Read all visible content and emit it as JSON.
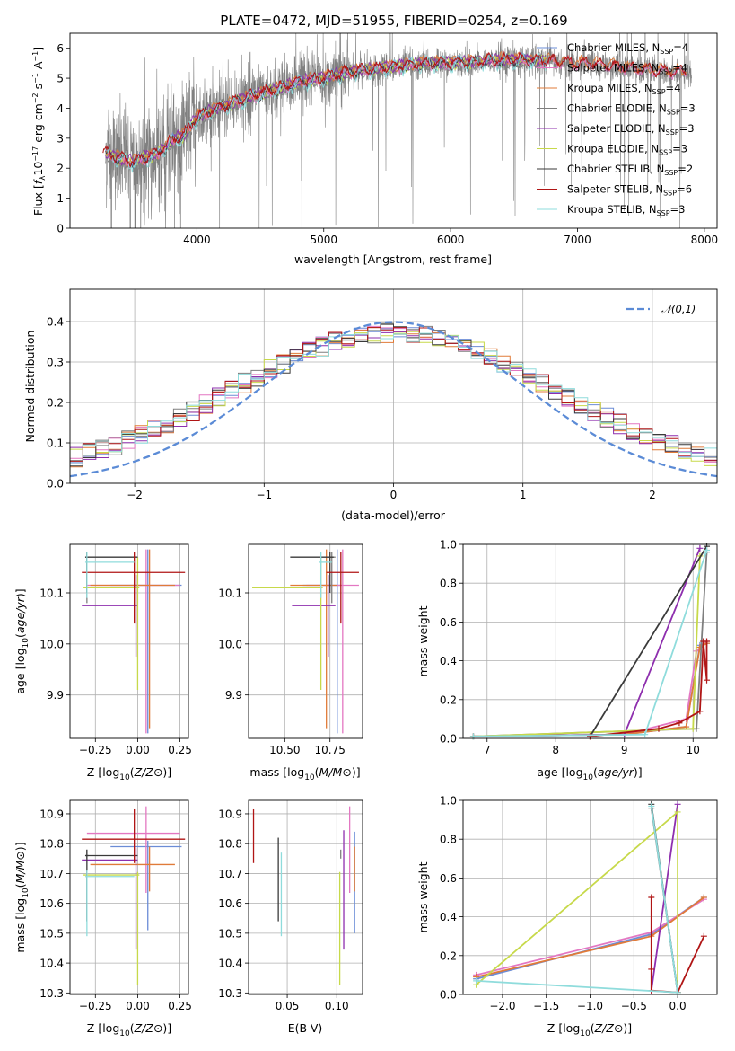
{
  "figure": {
    "title": "PLATE=0472, MJD=51955, FIBERID=0254, z=0.169"
  },
  "models": [
    {
      "imf": "Chabrier",
      "lib": "MILES",
      "n": "4",
      "color": "#6b8cd6"
    },
    {
      "imf": "Salpeter",
      "lib": "MILES",
      "n": "4",
      "color": "#e377c2"
    },
    {
      "imf": "Kroupa",
      "lib": "MILES",
      "n": "4",
      "color": "#e07b39"
    },
    {
      "imf": "Chabrier",
      "lib": "ELODIE",
      "n": "3",
      "color": "#7f7f7f"
    },
    {
      "imf": "Salpeter",
      "lib": "ELODIE",
      "n": "3",
      "color": "#8e2fae"
    },
    {
      "imf": "Kroupa",
      "lib": "ELODIE",
      "n": "3",
      "color": "#c7d94a"
    },
    {
      "imf": "Chabrier",
      "lib": "STELIB",
      "n": "2",
      "color": "#3a3a3a"
    },
    {
      "imf": "Salpeter",
      "lib": "STELIB",
      "n": "6",
      "color": "#b01515"
    },
    {
      "imf": "Kroupa",
      "lib": "STELIB",
      "n": "3",
      "color": "#8fdcdc"
    }
  ],
  "chart_data": [
    {
      "id": "spectrum",
      "type": "line",
      "xlabel": "wavelength [Angstrom, rest frame]",
      "ylabel": "Flux [f_λ 10^-17 erg cm^-2 s^-1 A^-1]",
      "xlim": [
        3000,
        8100
      ],
      "ylim": [
        0,
        6.5
      ],
      "xticks": [
        4000,
        5000,
        6000,
        7000,
        8000
      ],
      "yticks": [
        0,
        1,
        2,
        3,
        4,
        5,
        6
      ],
      "grid": false,
      "legend": "right",
      "model_continuum": {
        "x": [
          3280,
          3400,
          3500,
          3600,
          3700,
          3800,
          3900,
          4000,
          4200,
          4400,
          4600,
          4800,
          5000,
          5200,
          5400,
          5600,
          5800,
          6000,
          6200,
          6400,
          6600,
          6800,
          7000,
          7200,
          7400,
          7600,
          7800
        ],
        "y": [
          2.5,
          2.3,
          2.2,
          2.35,
          2.5,
          2.9,
          3.1,
          3.7,
          4.05,
          4.35,
          4.6,
          4.85,
          5.0,
          5.2,
          5.3,
          5.4,
          5.5,
          5.5,
          5.55,
          5.6,
          5.6,
          5.55,
          5.5,
          5.45,
          5.35,
          5.25,
          5.2
        ]
      }
    },
    {
      "id": "residuals",
      "type": "histogram",
      "xlabel": "(data-model)/error",
      "ylabel": "Normed distribution",
      "xlim": [
        -2.5,
        2.5
      ],
      "ylim": [
        0,
        0.48
      ],
      "xticks": [
        -2,
        -1,
        0,
        1,
        2
      ],
      "yticks": [
        0.0,
        0.1,
        0.2,
        0.3,
        0.4
      ],
      "grid": true,
      "legend": "top-right",
      "normal_label": "𝒩(0,1)",
      "normal_color": "#5b8bd6"
    },
    {
      "id": "age_vs_Z",
      "type": "errorbar",
      "xlabel": "Z [log10(Z/Z⊙)]",
      "ylabel": "age [log10(age/yr)]",
      "xlim": [
        -0.4,
        0.3
      ],
      "ylim": [
        9.815,
        10.195
      ],
      "xticks": [
        -0.25,
        0.0,
        0.25
      ],
      "yticks": [
        9.9,
        10.0,
        10.1
      ],
      "grid": true,
      "points": [
        {
          "x": 0.06,
          "xerr": [
            0.22,
            0.2
          ],
          "y": 10.115,
          "yerr": [
            0.29,
            0.07
          ]
        },
        {
          "x": 0.05,
          "xerr": [
            0.35,
            0.2
          ],
          "y": 10.115,
          "yerr": [
            0.29,
            0.07
          ]
        },
        {
          "x": 0.07,
          "xerr": [
            0.35,
            0.15
          ],
          "y": 10.115,
          "yerr": [
            0.28,
            0.07
          ]
        },
        {
          "x": -0.3,
          "xerr": [
            0.01,
            0.01
          ],
          "y": 10.17,
          "yerr": [
            0.09,
            0.01
          ]
        },
        {
          "x": -0.01,
          "xerr": [
            0.32,
            0.01
          ],
          "y": 10.075,
          "yerr": [
            0.1,
            0.06
          ]
        },
        {
          "x": 0.0,
          "xerr": [
            0.32,
            0.01
          ],
          "y": 10.11,
          "yerr": [
            0.2,
            0.06
          ]
        },
        {
          "x": -0.3,
          "xerr": [
            0.01,
            0.3
          ],
          "y": 10.17,
          "yerr": [
            0.07,
            0.01
          ]
        },
        {
          "x": -0.02,
          "xerr": [
            0.31,
            0.3
          ],
          "y": 10.14,
          "yerr": [
            0.1,
            0.04
          ]
        },
        {
          "x": -0.3,
          "xerr": [
            0.01,
            0.28
          ],
          "y": 10.16,
          "yerr": [
            0.07,
            0.02
          ]
        }
      ]
    },
    {
      "id": "age_vs_mass",
      "type": "errorbar",
      "xlabel": "mass [log10(M/M⊙)]",
      "ylabel": "",
      "xlim": [
        10.3,
        10.93
      ],
      "ylim": [
        9.815,
        10.195
      ],
      "xticks": [
        10.5,
        10.75
      ],
      "yticks": [
        9.9,
        10.0,
        10.1
      ],
      "grid": true,
      "points": [
        {
          "x": 10.79,
          "xerr": [
            0.19,
            0.02
          ],
          "y": 10.115,
          "yerr": [
            0.29,
            0.07
          ]
        },
        {
          "x": 10.82,
          "xerr": [
            0.2,
            0.09
          ],
          "y": 10.115,
          "yerr": [
            0.29,
            0.07
          ]
        },
        {
          "x": 10.73,
          "xerr": [
            0.2,
            0.06
          ],
          "y": 10.115,
          "yerr": [
            0.28,
            0.07
          ]
        },
        {
          "x": 10.76,
          "xerr": [
            0.02,
            0.02
          ],
          "y": 10.17,
          "yerr": [
            0.09,
            0.01
          ]
        },
        {
          "x": 10.74,
          "xerr": [
            0.2,
            0.04
          ],
          "y": 10.075,
          "yerr": [
            0.1,
            0.06
          ]
        },
        {
          "x": 10.7,
          "xerr": [
            0.38,
            0.01
          ],
          "y": 10.11,
          "yerr": [
            0.2,
            0.06
          ]
        },
        {
          "x": 10.75,
          "xerr": [
            0.22,
            0.02
          ],
          "y": 10.17,
          "yerr": [
            0.07,
            0.01
          ]
        },
        {
          "x": 10.81,
          "xerr": [
            0.08,
            0.1
          ],
          "y": 10.14,
          "yerr": [
            0.1,
            0.04
          ]
        },
        {
          "x": 10.7,
          "xerr": [
            0.01,
            0.06
          ],
          "y": 10.16,
          "yerr": [
            0.07,
            0.02
          ]
        }
      ]
    },
    {
      "id": "weight_vs_age",
      "type": "line",
      "xlabel": "age [log10(age/yr)]",
      "ylabel": "mass weight",
      "xlim": [
        6.65,
        10.35
      ],
      "ylim": [
        0,
        1.0
      ],
      "xticks": [
        7,
        8,
        9,
        10
      ],
      "yticks": [
        0.0,
        0.2,
        0.4,
        0.6,
        0.8,
        1.0
      ],
      "grid": true,
      "series": [
        {
          "x": [
            6.8,
            9.0,
            9.9,
            10.1,
            10.2
          ],
          "y": [
            0.01,
            0.02,
            0.06,
            0.48,
            0.49
          ]
        },
        {
          "x": [
            6.8,
            9.0,
            9.9,
            10.05,
            10.2
          ],
          "y": [
            0.01,
            0.02,
            0.1,
            0.45,
            0.5
          ]
        },
        {
          "x": [
            6.8,
            9.0,
            9.9,
            10.1,
            10.2
          ],
          "y": [
            0.01,
            0.02,
            0.06,
            0.47,
            0.49
          ]
        },
        {
          "x": [
            6.8,
            10.05,
            10.2
          ],
          "y": [
            0.01,
            0.05,
            0.96
          ]
        },
        {
          "x": [
            6.8,
            9.0,
            10.1
          ],
          "y": [
            0.01,
            0.02,
            0.98
          ]
        },
        {
          "x": [
            6.8,
            10.0,
            10.1
          ],
          "y": [
            0.01,
            0.05,
            0.94
          ]
        },
        {
          "x": [
            8.5,
            10.2
          ],
          "y": [
            0.01,
            0.99
          ]
        },
        {
          "x": [
            8.5,
            9.5,
            9.8,
            10.1,
            10.15,
            10.2,
            10.2
          ],
          "y": [
            0.01,
            0.05,
            0.08,
            0.14,
            0.5,
            0.3,
            0.5
          ]
        },
        {
          "x": [
            6.8,
            9.3,
            10.2
          ],
          "y": [
            0.01,
            0.02,
            0.97
          ]
        }
      ]
    },
    {
      "id": "mass_vs_Z",
      "type": "errorbar",
      "xlabel": "Z [log10(Z/Z⊙)]",
      "ylabel": "mass [log10(M/M⊙)]",
      "xlim": [
        -0.4,
        0.3
      ],
      "ylim": [
        10.295,
        10.945
      ],
      "xticks": [
        -0.25,
        0.0,
        0.25
      ],
      "yticks": [
        10.3,
        10.4,
        10.5,
        10.6,
        10.7,
        10.8,
        10.9
      ],
      "grid": true,
      "points": [
        {
          "x": 0.06,
          "xerr": [
            0.22,
            0.2
          ],
          "y": 10.79,
          "yerr": [
            0.28,
            0.02
          ]
        },
        {
          "x": 0.05,
          "xerr": [
            0.35,
            0.2
          ],
          "y": 10.835,
          "yerr": [
            0.2,
            0.09
          ]
        },
        {
          "x": 0.07,
          "xerr": [
            0.35,
            0.15
          ],
          "y": 10.73,
          "yerr": [
            0.09,
            0.06
          ]
        },
        {
          "x": -0.3,
          "xerr": [
            0.01,
            0.01
          ],
          "y": 10.76,
          "yerr": [
            0.01,
            0.02
          ]
        },
        {
          "x": -0.01,
          "xerr": [
            0.32,
            0.01
          ],
          "y": 10.745,
          "yerr": [
            0.3,
            0.04
          ]
        },
        {
          "x": 0.0,
          "xerr": [
            0.32,
            0.01
          ],
          "y": 10.695,
          "yerr": [
            0.37,
            0.01
          ]
        },
        {
          "x": -0.3,
          "xerr": [
            0.01,
            0.3
          ],
          "y": 10.76,
          "yerr": [
            0.22,
            0.02
          ]
        },
        {
          "x": -0.02,
          "xerr": [
            0.31,
            0.3
          ],
          "y": 10.815,
          "yerr": [
            0.08,
            0.1
          ]
        },
        {
          "x": -0.3,
          "xerr": [
            0.01,
            0.28
          ],
          "y": 10.69,
          "yerr": [
            0.2,
            0.02
          ]
        }
      ]
    },
    {
      "id": "mass_vs_ebv",
      "type": "errorbar",
      "xlabel": "E(B-V)",
      "ylabel": "",
      "xlim": [
        0.011,
        0.126
      ],
      "ylim": [
        10.295,
        10.945
      ],
      "xticks": [
        0.05,
        0.1
      ],
      "yticks": [
        10.3,
        10.4,
        10.5,
        10.6,
        10.7,
        10.8,
        10.9
      ],
      "grid": true,
      "points": [
        {
          "x": 0.118,
          "y": 10.75,
          "yerr": [
            0.25,
            0.09
          ]
        },
        {
          "x": 0.113,
          "y": 10.835,
          "yerr": [
            0.2,
            0.09
          ]
        },
        {
          "x": 0.118,
          "y": 10.73,
          "yerr": [
            0.09,
            0.06
          ]
        },
        {
          "x": 0.104,
          "y": 10.76,
          "yerr": [
            0.01,
            0.02
          ]
        },
        {
          "x": 0.107,
          "y": 10.745,
          "yerr": [
            0.3,
            0.1
          ]
        },
        {
          "x": 0.103,
          "y": 10.695,
          "yerr": [
            0.37,
            0.01
          ]
        },
        {
          "x": 0.041,
          "y": 10.76,
          "yerr": [
            0.22,
            0.06
          ]
        },
        {
          "x": 0.016,
          "y": 10.815,
          "yerr": [
            0.08,
            0.1
          ]
        },
        {
          "x": 0.044,
          "y": 10.69,
          "yerr": [
            0.2,
            0.08
          ]
        }
      ]
    },
    {
      "id": "weight_vs_Z",
      "type": "line",
      "xlabel": "Z [log10(Z/Z⊙)]",
      "ylabel": "mass weight",
      "xlim": [
        -2.45,
        0.45
      ],
      "ylim": [
        0,
        1.0
      ],
      "xticks": [
        -2.0,
        -1.5,
        -1.0,
        -0.5,
        0.0
      ],
      "yticks": [
        0.0,
        0.2,
        0.4,
        0.6,
        0.8,
        1.0
      ],
      "grid": true,
      "series": [
        {
          "x": [
            -2.3,
            -0.3,
            0.3
          ],
          "y": [
            0.08,
            0.31,
            0.5
          ]
        },
        {
          "x": [
            -2.3,
            -0.3,
            0.3
          ],
          "y": [
            0.1,
            0.32,
            0.49
          ]
        },
        {
          "x": [
            -2.3,
            -0.3,
            0.3
          ],
          "y": [
            0.09,
            0.3,
            0.5
          ]
        },
        {
          "x": [
            -0.3,
            0.0
          ],
          "y": [
            0.96,
            0.01
          ]
        },
        {
          "x": [
            -0.3,
            0.0
          ],
          "y": [
            0.02,
            0.98
          ]
        },
        {
          "x": [
            -2.3,
            0.0,
            0.0
          ],
          "y": [
            0.05,
            0.94,
            0.01
          ]
        },
        {
          "x": [
            -0.3,
            0.0
          ],
          "y": [
            0.98,
            0.01
          ]
        },
        {
          "x": [
            -0.3,
            -0.3,
            -0.3,
            0.0,
            0.3
          ],
          "y": [
            0.5,
            0.13,
            0.02,
            0.01,
            0.3
          ]
        },
        {
          "x": [
            -0.3,
            0.0,
            -2.3
          ],
          "y": [
            0.97,
            0.01,
            0.07
          ]
        }
      ]
    }
  ]
}
